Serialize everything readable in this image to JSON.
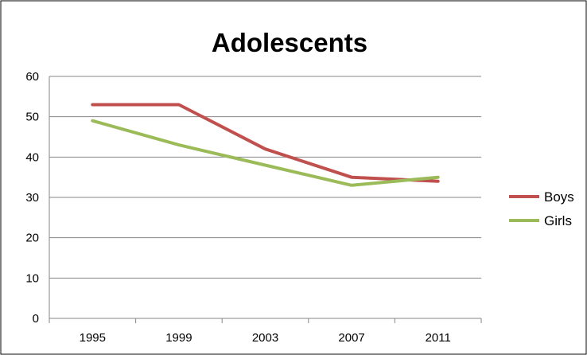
{
  "chart_data": {
    "type": "line",
    "title": "Adolescents",
    "xlabel": "",
    "ylabel": "",
    "categories": [
      "1995",
      "1999",
      "2003",
      "2007",
      "2011"
    ],
    "ylim": [
      0,
      60
    ],
    "yticks": [
      "0",
      "10",
      "20",
      "30",
      "40",
      "50",
      "60"
    ],
    "grid": "horizontal",
    "legend_position": "right",
    "series": [
      {
        "name": "Boys",
        "color": "#c0504d",
        "values": [
          53,
          53,
          42,
          35,
          34
        ]
      },
      {
        "name": "Girls",
        "color": "#9bbb59",
        "values": [
          49,
          43,
          38,
          33,
          35
        ]
      }
    ]
  }
}
